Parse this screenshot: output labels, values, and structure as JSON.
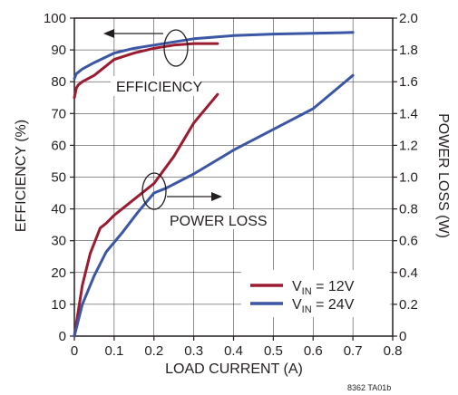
{
  "chart_data": {
    "type": "line",
    "xlabel": "LOAD CURRENT (A)",
    "ylabel_left": "EFFICIENCY (%)",
    "ylabel_right": "POWER LOSS (W)",
    "xlim": [
      0,
      0.8
    ],
    "ylim_left": [
      0,
      100
    ],
    "ylim_right": [
      0,
      2.0
    ],
    "x_ticks": [
      "0",
      "0.1",
      "0.2",
      "0.3",
      "0.4",
      "0.5",
      "0.6",
      "0.7",
      "0.8"
    ],
    "y_ticks_left": [
      "0",
      "10",
      "20",
      "30",
      "40",
      "50",
      "60",
      "70",
      "80",
      "90",
      "100"
    ],
    "y_ticks_right": [
      "0",
      "0.2",
      "0.4",
      "0.6",
      "0.8",
      "1.0",
      "1.2",
      "1.4",
      "1.6",
      "1.8",
      "2.0"
    ],
    "grid": true,
    "annotations": {
      "efficiency": "EFFICIENCY",
      "power_loss": "POWER LOSS"
    },
    "figure_code": "8362 TA01b",
    "legend": [
      {
        "prefix": "V",
        "sub": "IN",
        "suffix": " = 12V",
        "color": "#9b1b30"
      },
      {
        "prefix": "V",
        "sub": "IN",
        "suffix": " = 24V",
        "color": "#3a56a4"
      }
    ],
    "series": [
      {
        "quantity": "efficiency",
        "axis": "left",
        "color": "#9b1b30",
        "x": [
          0.0,
          0.005,
          0.01,
          0.02,
          0.05,
          0.08,
          0.1,
          0.15,
          0.2,
          0.25,
          0.3,
          0.36
        ],
        "y": [
          75.0,
          78.0,
          79.0,
          80.0,
          82.0,
          85.0,
          87.0,
          89.0,
          90.5,
          91.5,
          92.0,
          92.0
        ]
      },
      {
        "quantity": "power loss",
        "axis": "right",
        "color": "#9b1b30",
        "x": [
          0.0,
          0.02,
          0.04,
          0.065,
          0.08,
          0.1,
          0.15,
          0.2,
          0.25,
          0.3,
          0.36
        ],
        "y": [
          0.0,
          0.32,
          0.52,
          0.68,
          0.71,
          0.76,
          0.86,
          0.96,
          1.13,
          1.34,
          1.52
        ]
      },
      {
        "quantity": "efficiency",
        "axis": "left",
        "color": "#3a56a4",
        "x": [
          0.0,
          0.005,
          0.02,
          0.05,
          0.1,
          0.15,
          0.2,
          0.25,
          0.3,
          0.4,
          0.5,
          0.6,
          0.7
        ],
        "y": [
          81.0,
          82.5,
          84.0,
          86.0,
          89.0,
          90.5,
          91.5,
          92.5,
          93.5,
          94.5,
          95.0,
          95.2,
          95.5
        ]
      },
      {
        "quantity": "power loss",
        "axis": "right",
        "color": "#3a56a4",
        "x": [
          0.0,
          0.02,
          0.05,
          0.08,
          0.12,
          0.16,
          0.2,
          0.23,
          0.3,
          0.4,
          0.5,
          0.6,
          0.7
        ],
        "y": [
          0.0,
          0.2,
          0.38,
          0.53,
          0.65,
          0.78,
          0.9,
          0.93,
          1.02,
          1.17,
          1.3,
          1.43,
          1.64
        ]
      }
    ]
  }
}
